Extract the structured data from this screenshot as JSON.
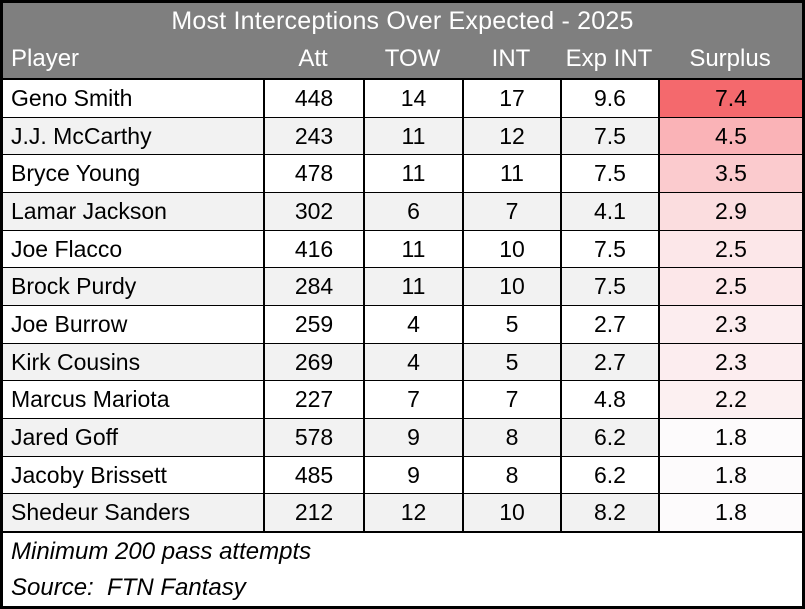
{
  "title": "Most Interceptions Over Expected - 2025",
  "columns": [
    "Player",
    "Att",
    "TOW",
    "INT",
    "Exp INT",
    "Surplus"
  ],
  "rows": [
    {
      "player": "Geno Smith",
      "att": "448",
      "tow": "14",
      "int": "17",
      "exp_int": "9.6",
      "surplus": "7.4",
      "surplus_color": "#F4696D"
    },
    {
      "player": "J.J. McCarthy",
      "att": "243",
      "tow": "11",
      "int": "12",
      "exp_int": "7.5",
      "surplus": "4.5",
      "surplus_color": "#FAB3B7"
    },
    {
      "player": "Bryce Young",
      "att": "478",
      "tow": "11",
      "int": "11",
      "exp_int": "7.5",
      "surplus": "3.5",
      "surplus_color": "#FBCBCE"
    },
    {
      "player": "Lamar Jackson",
      "att": "302",
      "tow": "6",
      "int": "7",
      "exp_int": "4.1",
      "surplus": "2.9",
      "surplus_color": "#FBDDDF"
    },
    {
      "player": "Joe Flacco",
      "att": "416",
      "tow": "11",
      "int": "10",
      "exp_int": "7.5",
      "surplus": "2.5",
      "surplus_color": "#FCE7E9"
    },
    {
      "player": "Brock Purdy",
      "att": "284",
      "tow": "11",
      "int": "10",
      "exp_int": "7.5",
      "surplus": "2.5",
      "surplus_color": "#FCE7E9"
    },
    {
      "player": "Joe Burrow",
      "att": "259",
      "tow": "4",
      "int": "5",
      "exp_int": "2.7",
      "surplus": "2.3",
      "surplus_color": "#FCEDEF"
    },
    {
      "player": "Kirk Cousins",
      "att": "269",
      "tow": "4",
      "int": "5",
      "exp_int": "2.7",
      "surplus": "2.3",
      "surplus_color": "#FCEDEF"
    },
    {
      "player": "Marcus Mariota",
      "att": "227",
      "tow": "7",
      "int": "7",
      "exp_int": "4.8",
      "surplus": "2.2",
      "surplus_color": "#FCF0F1"
    },
    {
      "player": "Jared Goff",
      "att": "578",
      "tow": "9",
      "int": "8",
      "exp_int": "6.2",
      "surplus": "1.8",
      "surplus_color": "#FDFBFC"
    },
    {
      "player": "Jacoby Brissett",
      "att": "485",
      "tow": "9",
      "int": "8",
      "exp_int": "6.2",
      "surplus": "1.8",
      "surplus_color": "#FDFBFC"
    },
    {
      "player": "Shedeur Sanders",
      "att": "212",
      "tow": "12",
      "int": "10",
      "exp_int": "8.2",
      "surplus": "1.8",
      "surplus_color": "#FDFBFC"
    }
  ],
  "footnotes": {
    "minimum": "Minimum 200 pass attempts",
    "source": "Source:  FTN Fantasy"
  },
  "colors": {
    "header_bg": "#7F7F7F",
    "header_text": "#FFFFFF",
    "band_even": "#F2F2F2",
    "band_odd": "#FFFFFF",
    "border": "#000000",
    "scale_max_red": "#F4696D",
    "scale_min_white": "#FDFBFC"
  },
  "chart_data": {
    "type": "table",
    "title": "Most Interceptions Over Expected - 2025",
    "columns": [
      "Player",
      "Att",
      "TOW",
      "INT",
      "Exp INT",
      "Surplus"
    ],
    "rows": [
      [
        "Geno Smith",
        448,
        14,
        17,
        9.6,
        7.4
      ],
      [
        "J.J. McCarthy",
        243,
        11,
        12,
        7.5,
        4.5
      ],
      [
        "Bryce Young",
        478,
        11,
        11,
        7.5,
        3.5
      ],
      [
        "Lamar Jackson",
        302,
        6,
        7,
        4.1,
        2.9
      ],
      [
        "Joe Flacco",
        416,
        11,
        10,
        7.5,
        2.5
      ],
      [
        "Brock Purdy",
        284,
        11,
        10,
        7.5,
        2.5
      ],
      [
        "Joe Burrow",
        259,
        4,
        5,
        2.7,
        2.3
      ],
      [
        "Kirk Cousins",
        269,
        4,
        5,
        2.7,
        2.3
      ],
      [
        "Marcus Mariota",
        227,
        7,
        7,
        4.8,
        2.2
      ],
      [
        "Jared Goff",
        578,
        9,
        8,
        6.2,
        1.8
      ],
      [
        "Jacoby Brissett",
        485,
        9,
        8,
        6.2,
        1.8
      ],
      [
        "Shedeur Sanders",
        212,
        12,
        10,
        8.2,
        1.8
      ]
    ],
    "notes": [
      "Minimum 200 pass attempts",
      "Source:  FTN Fantasy"
    ],
    "color_scale": {
      "column": "Surplus",
      "min_value": 1.8,
      "max_value": 7.4,
      "min_color": "#FDFBFC",
      "max_color": "#F4696D"
    }
  }
}
